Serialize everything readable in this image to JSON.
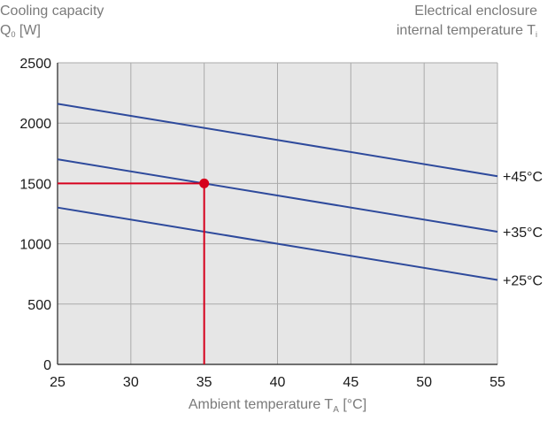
{
  "header_left": {
    "line1": "Cooling capacity",
    "q_main": "Q",
    "q_sub": "0",
    "q_unit": "[W]"
  },
  "header_right": {
    "line1": "Electrical enclosure",
    "line2": "internal temperature T",
    "line2_sub": "i"
  },
  "x_axis_label": {
    "main": "Ambient temperature T",
    "sub": "A",
    "unit": "[°C]"
  },
  "chart_data": {
    "type": "line",
    "x_ticks": [
      25,
      30,
      35,
      40,
      45,
      50,
      55
    ],
    "y_ticks": [
      0,
      500,
      1000,
      1500,
      2000,
      2500
    ],
    "xlim": [
      25,
      55
    ],
    "ylim": [
      0,
      2500
    ],
    "grid": true,
    "series": [
      {
        "name": "+45°C",
        "x": [
          25,
          55
        ],
        "y": [
          2160,
          1560
        ]
      },
      {
        "name": "+35°C",
        "x": [
          25,
          55
        ],
        "y": [
          1700,
          1100
        ]
      },
      {
        "name": "+25°C",
        "x": [
          25,
          55
        ],
        "y": [
          1300,
          700
        ]
      }
    ],
    "marker_point": {
      "x": 35,
      "y": 1500
    },
    "colors": {
      "series": "#2e4a9c",
      "highlight": "#d6001c",
      "plot_background": "#e6e6e6",
      "grid": "#aaaaaa"
    }
  }
}
